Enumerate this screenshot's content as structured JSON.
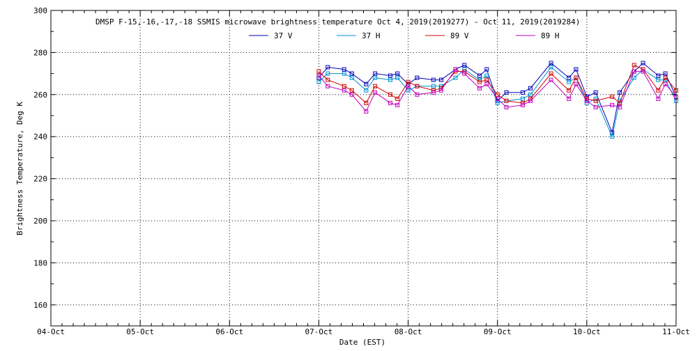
{
  "chart_data": {
    "type": "line",
    "title": "DMSP F-15,-16,-17,-18 SSMIS microwave brightness temperature Oct  4, 2019(2019277) - Oct 11, 2019(2019284)",
    "xlabel": "Date (EST)",
    "ylabel": "Brightness Temperature, Deg K",
    "xlim": [
      "2019-10-04 00:00",
      "2019-10-11 00:00"
    ],
    "ylim": [
      150,
      300
    ],
    "x_ticks": [
      "04-Oct",
      "05-Oct",
      "06-Oct",
      "07-Oct",
      "08-Oct",
      "09-Oct",
      "10-Oct",
      "11-Oct"
    ],
    "y_ticks": [
      160,
      180,
      200,
      220,
      240,
      260,
      280,
      300
    ],
    "grid": true,
    "legend": "top",
    "x": [
      "2019-10-07 00:00",
      "2019-10-07 02:24",
      "2019-10-07 06:48",
      "2019-10-07 08:52",
      "2019-10-07 12:43",
      "2019-10-07 15:07",
      "2019-10-07 19:12",
      "2019-10-07 21:07",
      "2019-10-08 00:00",
      "2019-10-08 02:24",
      "2019-10-08 06:48",
      "2019-10-08 08:52",
      "2019-10-08 12:43",
      "2019-10-08 15:07",
      "2019-10-08 19:12",
      "2019-10-08 21:07",
      "2019-10-09 00:00",
      "2019-10-09 02:24",
      "2019-10-09 06:48",
      "2019-10-09 08:52",
      "2019-10-09 14:24",
      "2019-10-09 19:12",
      "2019-10-09 21:07",
      "2019-10-10 00:00",
      "2019-10-10 02:24",
      "2019-10-10 06:48",
      "2019-10-10 08:52",
      "2019-10-10 12:43",
      "2019-10-10 15:07",
      "2019-10-10 19:12",
      "2019-10-10 21:07",
      "2019-10-11 00:00"
    ],
    "series": [
      {
        "name": "37 V",
        "color": "#0000b8",
        "values": [
          268,
          273,
          272,
          270,
          265,
          270,
          269,
          270,
          265,
          268,
          267,
          267,
          272,
          274,
          269,
          272,
          257,
          261,
          261,
          263,
          275,
          268,
          272,
          259,
          261,
          242,
          261,
          271,
          275,
          269,
          270,
          259
        ]
      },
      {
        "name": "37 H",
        "color": "#0090d0",
        "values": [
          266,
          270,
          270,
          268,
          262,
          268,
          267,
          268,
          262,
          264,
          264,
          264,
          268,
          272,
          267,
          269,
          256,
          257,
          258,
          260,
          273,
          266,
          268,
          256,
          258,
          240,
          257,
          268,
          272,
          267,
          267,
          257
        ]
      },
      {
        "name": "89 V",
        "color": "#d00000",
        "values": [
          271,
          267,
          264,
          262,
          256,
          264,
          260,
          258,
          266,
          264,
          262,
          263,
          271,
          271,
          266,
          267,
          260,
          257,
          256,
          258,
          270,
          262,
          268,
          258,
          257,
          259,
          256,
          274,
          272,
          262,
          268,
          262
        ]
      },
      {
        "name": "89 H",
        "color": "#c000c0",
        "values": [
          269,
          264,
          262,
          260,
          252,
          261,
          256,
          255,
          264,
          260,
          261,
          262,
          272,
          270,
          263,
          265,
          258,
          254,
          255,
          257,
          267,
          258,
          265,
          257,
          254,
          255,
          254,
          271,
          271,
          258,
          265,
          259
        ]
      }
    ]
  }
}
